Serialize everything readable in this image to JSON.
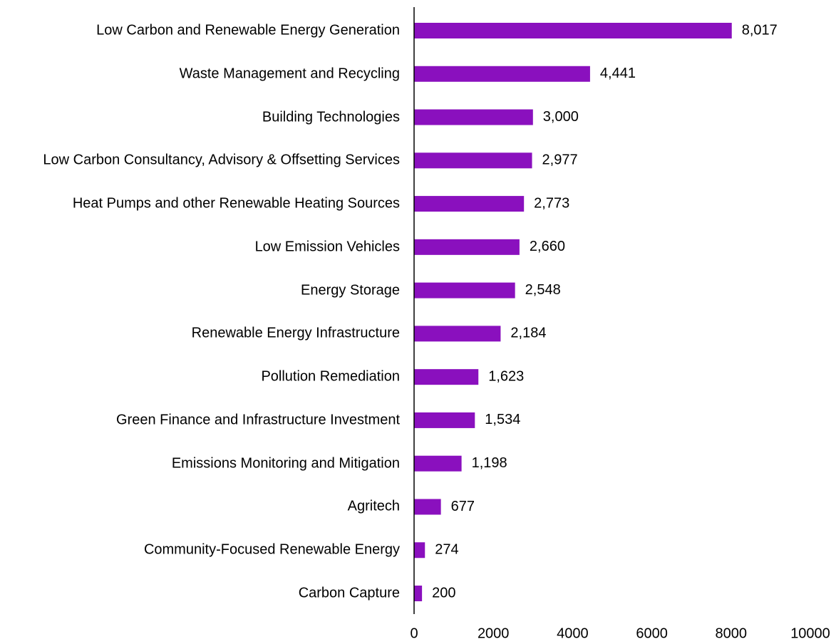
{
  "chart_data": {
    "type": "barh",
    "categories": [
      "Low Carbon and Renewable Energy Generation",
      "Waste Management and Recycling",
      "Building Technologies",
      "Low Carbon Consultancy, Advisory & Offsetting Services",
      "Heat Pumps and other Renewable Heating Sources",
      "Low Emission Vehicles",
      "Energy Storage",
      "Renewable Energy Infrastructure",
      "Pollution Remediation",
      "Green Finance and Infrastructure Investment",
      "Emissions Monitoring and Mitigation",
      "Agritech",
      "Community-Focused Renewable Energy",
      "Carbon Capture"
    ],
    "values": [
      8017,
      4441,
      3000,
      2977,
      2773,
      2660,
      2548,
      2184,
      1623,
      1534,
      1198,
      677,
      274,
      200
    ],
    "value_labels": [
      "8,017",
      "4,441",
      "3,000",
      "2,977",
      "2,773",
      "2,660",
      "2,548",
      "2,184",
      "1,623",
      "1,534",
      "1,198",
      "677",
      "274",
      "200"
    ],
    "color": "#8a10be",
    "xlim": [
      0,
      10000
    ],
    "xticks": [
      0,
      2000,
      4000,
      6000,
      8000,
      10000
    ],
    "grid": false
  }
}
